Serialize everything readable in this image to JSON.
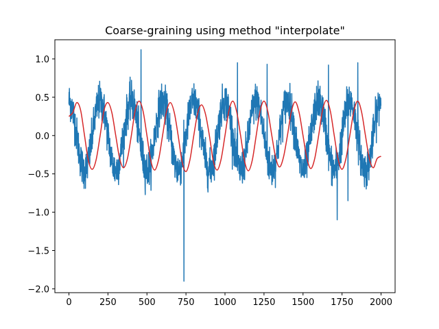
{
  "chart_data": {
    "type": "line",
    "title": "Coarse-graining using method \"interpolate\"",
    "xlabel": "",
    "ylabel": "",
    "xlim": [
      -90,
      2090
    ],
    "ylim": [
      -2.05,
      1.25
    ],
    "xticks": [
      0,
      250,
      500,
      750,
      1000,
      1250,
      1500,
      1750,
      2000
    ],
    "yticks": [
      1.0,
      0.5,
      0.0,
      -0.5,
      -1.0,
      -1.5,
      -2.0
    ],
    "ytick_labels": [
      "1.0",
      "0.5",
      "0.0",
      "−0.5",
      "−1.0",
      "−1.5",
      "−2.0"
    ],
    "grid": false,
    "series": [
      {
        "color": "#1f77b4",
        "description": "raw noisy sine signal, 2000 samples, period ~200",
        "n": 2000,
        "period": 200,
        "amplitude": 0.45,
        "noise_sd": 0.12,
        "spikes": [
          [
            737,
            -1.9
          ],
          [
            462,
            1.12
          ],
          [
            1719,
            -1.1
          ],
          [
            1270,
            0.93
          ],
          [
            1851,
            0.95
          ],
          [
            1663,
            0.92
          ],
          [
            1080,
            0.95
          ],
          [
            1788,
            -0.85
          ]
        ]
      },
      {
        "color": "#d62728",
        "description": "coarse-grained (interpolated) smooth curve",
        "x": [
          0,
          25,
          50,
          75,
          100,
          125,
          150,
          175,
          200,
          225,
          250,
          275,
          300,
          325,
          350,
          375,
          400,
          425,
          450,
          475,
          500,
          525,
          550,
          575,
          600,
          625,
          650,
          675,
          700,
          725,
          750,
          775,
          800,
          825,
          850,
          875,
          900,
          925,
          950,
          975,
          1000,
          1025,
          1050,
          1075,
          1100,
          1125,
          1150,
          1175,
          1200,
          1225,
          1250,
          1275,
          1300,
          1325,
          1350,
          1375,
          1400,
          1425,
          1450,
          1475,
          1500,
          1525,
          1550,
          1575,
          1600,
          1625,
          1650,
          1675,
          1700,
          1725,
          1750,
          1775,
          1800,
          1825,
          1850,
          1875,
          1900,
          1925,
          1950,
          1975,
          2000
        ],
        "y": [
          0.25,
          0.3,
          0.43,
          0.33,
          0.0,
          -0.33,
          -0.44,
          -0.31,
          0.0,
          0.33,
          0.43,
          0.3,
          0.0,
          -0.3,
          -0.42,
          -0.3,
          0.0,
          0.33,
          0.45,
          0.32,
          0.0,
          -0.33,
          -0.45,
          -0.31,
          0.0,
          0.31,
          0.43,
          0.3,
          0.0,
          -0.34,
          -0.47,
          -0.32,
          0.0,
          0.29,
          0.4,
          0.28,
          0.0,
          -0.33,
          -0.45,
          -0.31,
          0.0,
          0.32,
          0.45,
          0.31,
          0.0,
          -0.33,
          -0.46,
          -0.32,
          0.0,
          0.32,
          0.45,
          0.31,
          0.0,
          -0.29,
          -0.41,
          -0.28,
          0.0,
          0.31,
          0.44,
          0.3,
          0.0,
          -0.3,
          -0.43,
          -0.3,
          0.0,
          0.33,
          0.46,
          0.32,
          0.0,
          -0.31,
          -0.44,
          -0.3,
          0.0,
          0.31,
          0.45,
          0.31,
          0.0,
          -0.3,
          -0.42,
          -0.3,
          -0.27
        ]
      }
    ]
  }
}
